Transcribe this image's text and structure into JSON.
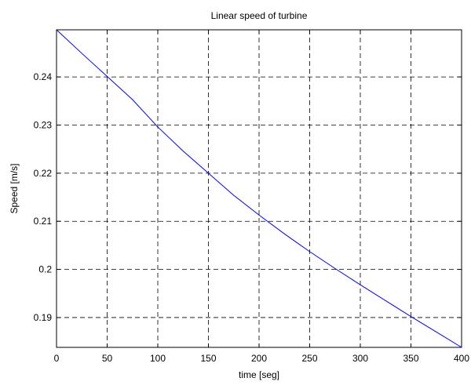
{
  "chart_data": {
    "type": "line",
    "title": "Linear speed of turbine",
    "xlabel": "time [seg]",
    "ylabel": "Speed [m/s]",
    "xlim": [
      0,
      400
    ],
    "ylim": [
      0.1838,
      0.2498
    ],
    "grid": true,
    "grid_style": "dashed",
    "line_color": "#0000ff",
    "axis_color": "#000000",
    "x_ticks": [
      {
        "value": 0,
        "label": "0"
      },
      {
        "value": 50,
        "label": "50"
      },
      {
        "value": 100,
        "label": "100"
      },
      {
        "value": 150,
        "label": "150"
      },
      {
        "value": 200,
        "label": "200"
      },
      {
        "value": 250,
        "label": "250"
      },
      {
        "value": 300,
        "label": "300"
      },
      {
        "value": 350,
        "label": "350"
      },
      {
        "value": 400,
        "label": "400"
      }
    ],
    "y_ticks": [
      {
        "value": 0.19,
        "label": "0.19"
      },
      {
        "value": 0.2,
        "label": "0.2"
      },
      {
        "value": 0.21,
        "label": "0.21"
      },
      {
        "value": 0.22,
        "label": "0.22"
      },
      {
        "value": 0.23,
        "label": "0.23"
      },
      {
        "value": 0.24,
        "label": "0.24"
      }
    ],
    "series": [
      {
        "x": [
          0,
          25,
          50,
          75,
          100,
          125,
          150,
          175,
          200,
          225,
          250,
          275,
          300,
          325,
          350,
          375,
          400
        ],
        "values": [
          0.2498,
          0.2449,
          0.2401,
          0.2353,
          0.2296,
          0.2246,
          0.22,
          0.2154,
          0.2113,
          0.2074,
          0.2037,
          0.2002,
          0.1968,
          0.1935,
          0.1902,
          0.187,
          0.1838
        ]
      }
    ]
  }
}
